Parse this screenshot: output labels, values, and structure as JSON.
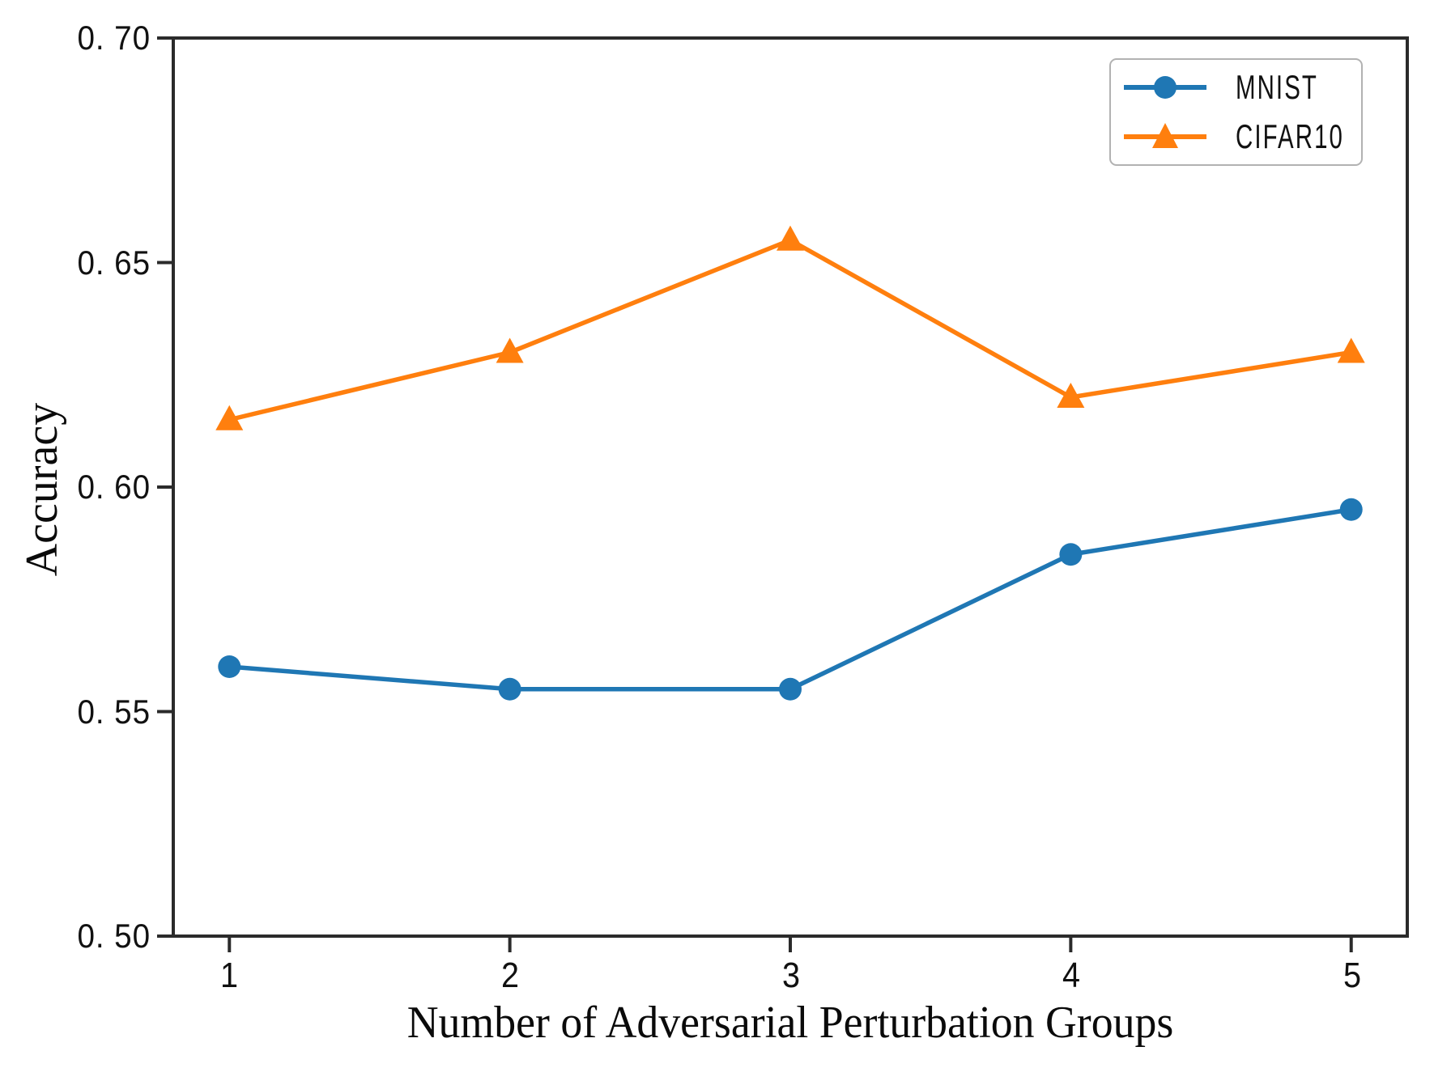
{
  "chart_data": {
    "type": "line",
    "x": [
      1,
      2,
      3,
      4,
      5
    ],
    "series": [
      {
        "name": "MNIST",
        "marker": "circle",
        "color": "#1f77b4",
        "values": [
          0.56,
          0.555,
          0.555,
          0.585,
          0.595
        ]
      },
      {
        "name": "CIFAR10",
        "marker": "triangle",
        "color": "#ff7f0e",
        "values": [
          0.615,
          0.63,
          0.655,
          0.62,
          0.63
        ]
      }
    ],
    "title": "",
    "xlabel": "Number of Adversarial Perturbation Groups",
    "ylabel": "Accuracy",
    "xlim": [
      0.8,
      5.2
    ],
    "ylim": [
      0.5,
      0.7
    ],
    "xticks": [
      1,
      2,
      3,
      4,
      5
    ],
    "xtick_labels": [
      "1",
      "2",
      "3",
      "4",
      "5"
    ],
    "yticks": [
      0.5,
      0.55,
      0.6,
      0.65,
      0.7
    ],
    "ytick_labels": [
      "0. 50",
      "0. 55",
      "0. 60",
      "0. 65",
      "0. 70"
    ],
    "grid": false,
    "legend_position": "upper right"
  },
  "colors": {
    "axis": "#2b2b2b",
    "tick": "#2b2b2b",
    "legend_border": "#b2b2b2",
    "background": "#ffffff",
    "mnist_blue": "#1f77b4",
    "cifar_orange": "#ff7f0e"
  }
}
